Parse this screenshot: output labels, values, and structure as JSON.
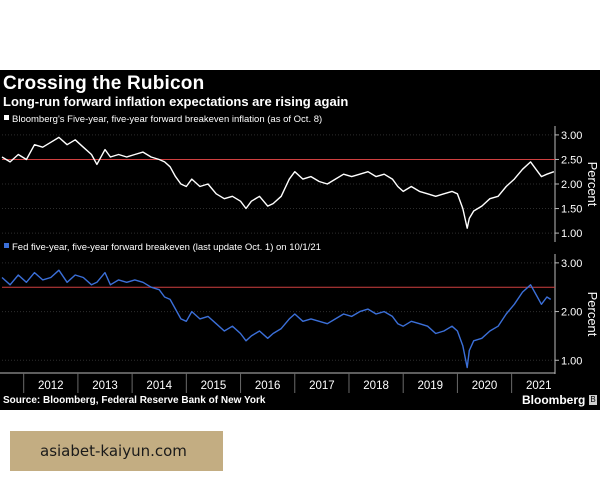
{
  "header": {
    "title": "Crossing the Rubicon",
    "subtitle": "Long-run forward inflation expectations are rising again"
  },
  "footer": {
    "source": "Source: Bloomberg, Federal Reserve Bank of New York",
    "brand": "Bloomberg",
    "brand_mark": "B"
  },
  "watermark": {
    "text": "asiabet-kaiyun.com"
  },
  "colors": {
    "background": "#000000",
    "top_series": "#ffffff",
    "bottom_series": "#3b6fd8",
    "reference_line": "#d04040"
  },
  "chart_data": [
    {
      "type": "line",
      "title": "Bloomberg's Five-year, five-year forward breakeven inflation (as of Oct. 8)",
      "legend_swatch": "#ffffff",
      "ylabel": "Percent",
      "ylim": [
        0.9,
        3.1
      ],
      "yticks": [
        3.0,
        2.5,
        2.0,
        1.5,
        1.0
      ],
      "ytick_labels": [
        "3.00",
        "2.50",
        "2.00",
        "1.50",
        "1.00"
      ],
      "reference_line": 2.5,
      "xlim": [
        2011.6,
        2021.8
      ],
      "series": [
        {
          "name": "5y5y forward breakeven (Bloomberg)",
          "x": [
            2011.6,
            2011.75,
            2011.9,
            2012.05,
            2012.2,
            2012.35,
            2012.5,
            2012.65,
            2012.8,
            2012.95,
            2013.1,
            2013.25,
            2013.35,
            2013.5,
            2013.6,
            2013.75,
            2013.9,
            2014.05,
            2014.2,
            2014.35,
            2014.5,
            2014.6,
            2014.7,
            2014.8,
            2014.9,
            2015.0,
            2015.1,
            2015.25,
            2015.4,
            2015.55,
            2015.7,
            2015.85,
            2016.0,
            2016.1,
            2016.2,
            2016.35,
            2016.5,
            2016.6,
            2016.75,
            2016.9,
            2017.0,
            2017.15,
            2017.3,
            2017.45,
            2017.6,
            2017.75,
            2017.9,
            2018.05,
            2018.2,
            2018.35,
            2018.5,
            2018.65,
            2018.8,
            2018.9,
            2019.0,
            2019.15,
            2019.3,
            2019.45,
            2019.6,
            2019.75,
            2019.9,
            2020.0,
            2020.1,
            2020.18,
            2020.22,
            2020.3,
            2020.45,
            2020.6,
            2020.75,
            2020.9,
            2021.05,
            2021.2,
            2021.35,
            2021.45,
            2021.55,
            2021.65,
            2021.78
          ],
          "values": [
            2.55,
            2.45,
            2.6,
            2.5,
            2.8,
            2.75,
            2.85,
            2.95,
            2.8,
            2.9,
            2.75,
            2.6,
            2.4,
            2.7,
            2.55,
            2.6,
            2.55,
            2.6,
            2.65,
            2.55,
            2.5,
            2.45,
            2.35,
            2.15,
            2.0,
            1.95,
            2.1,
            1.95,
            2.0,
            1.8,
            1.7,
            1.75,
            1.65,
            1.5,
            1.65,
            1.75,
            1.55,
            1.6,
            1.75,
            2.1,
            2.25,
            2.1,
            2.15,
            2.05,
            2.0,
            2.1,
            2.2,
            2.15,
            2.2,
            2.25,
            2.15,
            2.2,
            2.1,
            1.95,
            1.85,
            1.95,
            1.85,
            1.8,
            1.75,
            1.8,
            1.85,
            1.8,
            1.5,
            1.1,
            1.3,
            1.45,
            1.55,
            1.7,
            1.75,
            1.95,
            2.1,
            2.3,
            2.45,
            2.3,
            2.15,
            2.2,
            2.25
          ]
        }
      ]
    },
    {
      "type": "line",
      "title": "Fed five-year, five-year forward breakeven (last update Oct. 1) on 10/1/21",
      "legend_swatch": "#3b6fd8",
      "ylabel": "Percent",
      "ylim": [
        0.8,
        3.1
      ],
      "yticks": [
        3.0,
        2.0,
        1.0
      ],
      "ytick_labels": [
        "3.00",
        "2.00",
        "1.00"
      ],
      "reference_line": 2.5,
      "xlim": [
        2011.6,
        2021.8
      ],
      "categories": [
        "2012",
        "2013",
        "2014",
        "2015",
        "2016",
        "2017",
        "2018",
        "2019",
        "2020",
        "2021"
      ],
      "series": [
        {
          "name": "Fed 5y5y forward breakeven",
          "x": [
            2011.6,
            2011.75,
            2011.9,
            2012.05,
            2012.2,
            2012.35,
            2012.5,
            2012.65,
            2012.8,
            2012.95,
            2013.1,
            2013.25,
            2013.35,
            2013.5,
            2013.6,
            2013.75,
            2013.9,
            2014.05,
            2014.2,
            2014.35,
            2014.5,
            2014.6,
            2014.7,
            2014.8,
            2014.9,
            2015.0,
            2015.1,
            2015.25,
            2015.4,
            2015.55,
            2015.7,
            2015.85,
            2016.0,
            2016.1,
            2016.2,
            2016.35,
            2016.5,
            2016.6,
            2016.75,
            2016.9,
            2017.0,
            2017.15,
            2017.3,
            2017.45,
            2017.6,
            2017.75,
            2017.9,
            2018.05,
            2018.2,
            2018.35,
            2018.5,
            2018.65,
            2018.8,
            2018.9,
            2019.0,
            2019.15,
            2019.3,
            2019.45,
            2019.6,
            2019.75,
            2019.9,
            2020.0,
            2020.1,
            2020.18,
            2020.22,
            2020.3,
            2020.45,
            2020.6,
            2020.75,
            2020.9,
            2021.05,
            2021.2,
            2021.35,
            2021.45,
            2021.55,
            2021.65,
            2021.72
          ],
          "values": [
            2.7,
            2.55,
            2.75,
            2.6,
            2.8,
            2.65,
            2.7,
            2.85,
            2.6,
            2.75,
            2.7,
            2.55,
            2.6,
            2.8,
            2.55,
            2.65,
            2.6,
            2.65,
            2.6,
            2.5,
            2.45,
            2.3,
            2.25,
            2.05,
            1.85,
            1.8,
            2.0,
            1.85,
            1.9,
            1.75,
            1.6,
            1.7,
            1.55,
            1.4,
            1.5,
            1.6,
            1.45,
            1.55,
            1.65,
            1.85,
            1.95,
            1.8,
            1.85,
            1.8,
            1.75,
            1.85,
            1.95,
            1.9,
            2.0,
            2.05,
            1.95,
            2.0,
            1.9,
            1.75,
            1.7,
            1.8,
            1.75,
            1.7,
            1.55,
            1.6,
            1.7,
            1.6,
            1.3,
            0.85,
            1.2,
            1.4,
            1.45,
            1.6,
            1.7,
            1.95,
            2.15,
            2.4,
            2.55,
            2.35,
            2.15,
            2.3,
            2.25
          ]
        }
      ]
    }
  ]
}
